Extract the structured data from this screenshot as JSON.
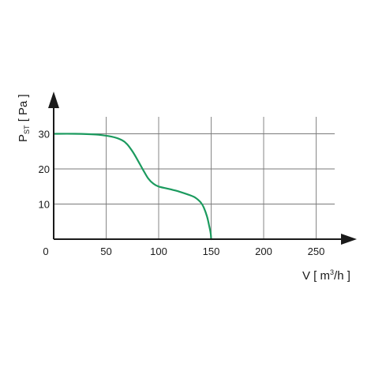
{
  "chart_data": {
    "type": "line",
    "title": "",
    "xlabel": {
      "prefix": "V [ m",
      "sup": "3",
      "suffix": "/h ]"
    },
    "ylabel": {
      "main": "P",
      "sub": "ST",
      "suffix": " [ Pa ]"
    },
    "xlim": [
      0,
      275
    ],
    "ylim": [
      0,
      40
    ],
    "x_ticks": [
      50,
      100,
      150,
      200,
      250
    ],
    "y_ticks": [
      10,
      20,
      30
    ],
    "origin_label": "0",
    "grid": true,
    "colors": {
      "curve": "#1b9a5e",
      "axis": "#1a1a1a",
      "grid": "#7a7a7a"
    },
    "series": [
      {
        "x": [
          0,
          20,
          40,
          55,
          65,
          70,
          75,
          80,
          85,
          90,
          95,
          100,
          110,
          120,
          130,
          135,
          140,
          143,
          146,
          148,
          149.5,
          150
        ],
        "y": [
          30,
          30,
          29.8,
          29.2,
          28.2,
          27,
          25,
          22.5,
          19.8,
          17.3,
          15.8,
          15,
          14.3,
          13.5,
          12.5,
          11.8,
          10.5,
          9,
          6.5,
          4,
          1.8,
          0
        ]
      }
    ]
  }
}
